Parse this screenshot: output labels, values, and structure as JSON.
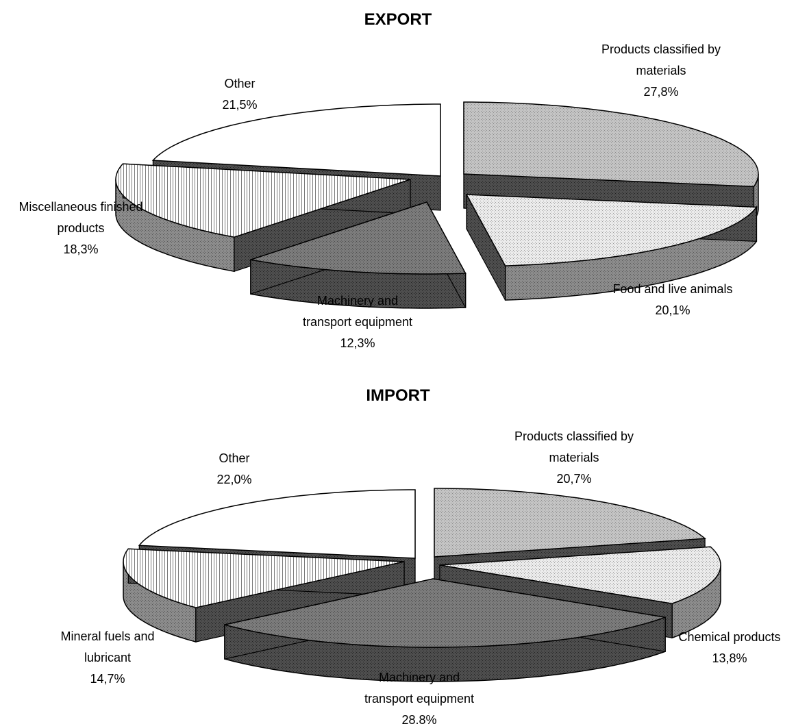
{
  "chart_data": [
    {
      "type": "pie",
      "title": "EXPORT",
      "categories": [
        "Products classified by materials",
        "Food and live animals",
        "Machinery and transport equipment",
        "Miscellaneous finished products",
        "Other"
      ],
      "values": [
        27.8,
        20.1,
        12.3,
        18.3,
        21.5
      ],
      "value_labels": [
        "27,8%",
        "20,1%",
        "12,3%",
        "18,3%",
        "21,5%"
      ],
      "label_lines": [
        [
          "Products classified by",
          "materials"
        ],
        [
          "Food and live animals"
        ],
        [
          "Machinery and",
          "transport equipment"
        ],
        [
          "Miscellaneous finished",
          "products"
        ],
        [
          "Other"
        ]
      ],
      "style": "3d-exploded",
      "legend": "none",
      "unit": "%"
    },
    {
      "type": "pie",
      "title": "IMPORT",
      "categories": [
        "Products classified by materials",
        "Chemical products",
        "Machinery and transport equipment",
        "Mineral fuels and lubricant",
        "Other"
      ],
      "values": [
        20.7,
        13.8,
        28.8,
        14.7,
        22.0
      ],
      "value_labels": [
        "20,7%",
        "13,8%",
        "28,8%",
        "14,7%",
        "22,0%"
      ],
      "label_lines": [
        [
          "Products classified by",
          "materials"
        ],
        [
          "Chemical products"
        ],
        [
          "Machinery and",
          "transport equipment"
        ],
        [
          "Mineral fuels and",
          "lubricant"
        ],
        [
          "Other"
        ]
      ],
      "style": "3d-exploded",
      "legend": "none",
      "unit": "%"
    }
  ],
  "colors": {
    "materials": "#c8c8c8",
    "second": "#e4e4e4",
    "machinery": "#777777",
    "fourth": "#f4f4f4",
    "other": "#ffffff",
    "outline": "#000000"
  }
}
